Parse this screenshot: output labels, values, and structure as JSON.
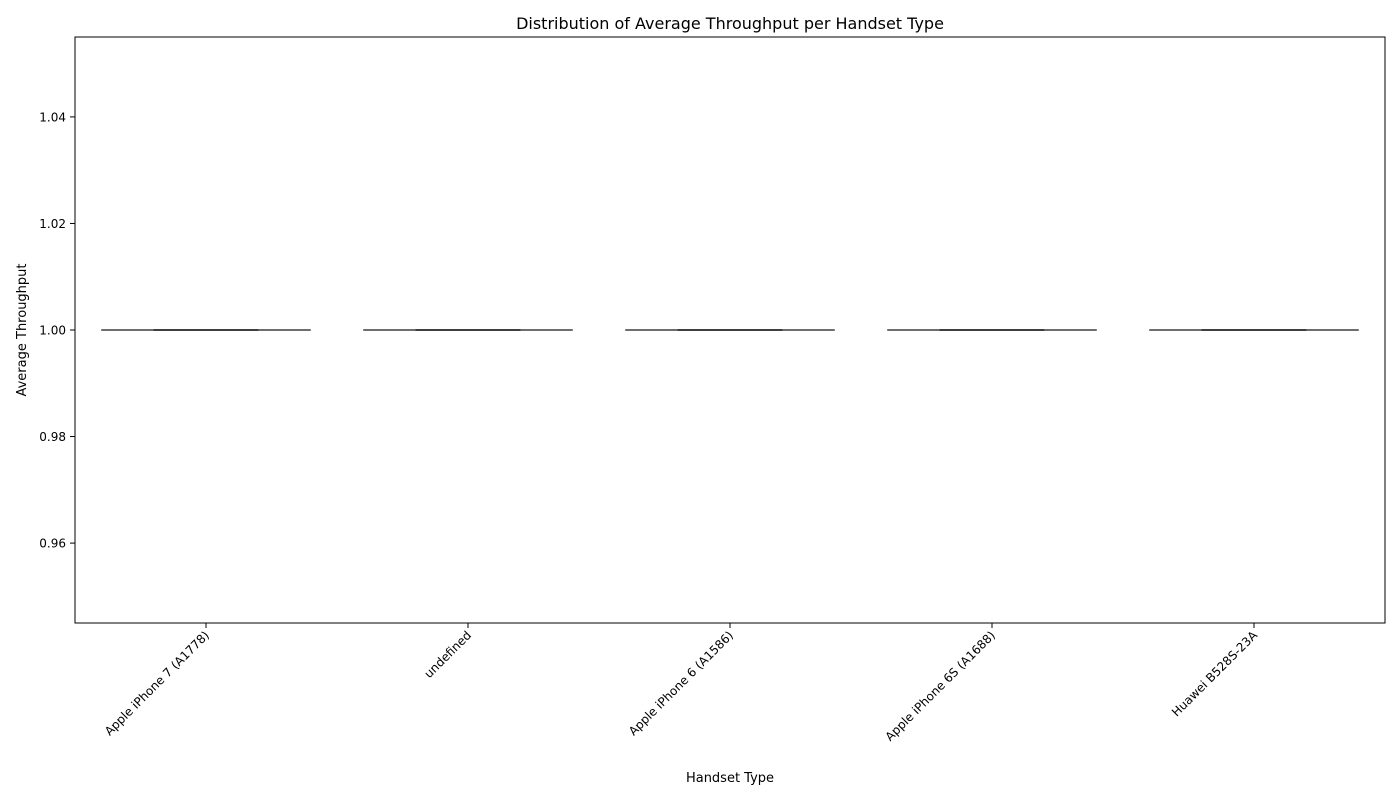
{
  "chart_data": {
    "type": "box",
    "title": "Distribution of Average Throughput per Handset Type",
    "xlabel": "Handset Type",
    "ylabel": "Average Throughput",
    "categories": [
      "Apple iPhone 7 (A1778)",
      "undefined",
      "Apple iPhone 6 (A1586)",
      "Apple iPhone 6S (A1688)",
      "Huawei B528S-23A"
    ],
    "values": [
      1.0,
      1.0,
      1.0,
      1.0,
      1.0
    ],
    "ylim": [
      0.945,
      1.055
    ],
    "yticks": [
      0.96,
      0.98,
      1.0,
      1.02,
      1.04
    ],
    "ytick_labels": [
      "0.96",
      "0.98",
      "1.00",
      "1.02",
      "1.04"
    ],
    "grid": false,
    "x_tick_rotation_deg": 45,
    "colors": {
      "axis": "#000000",
      "box_line": "#3f3f3f"
    }
  }
}
